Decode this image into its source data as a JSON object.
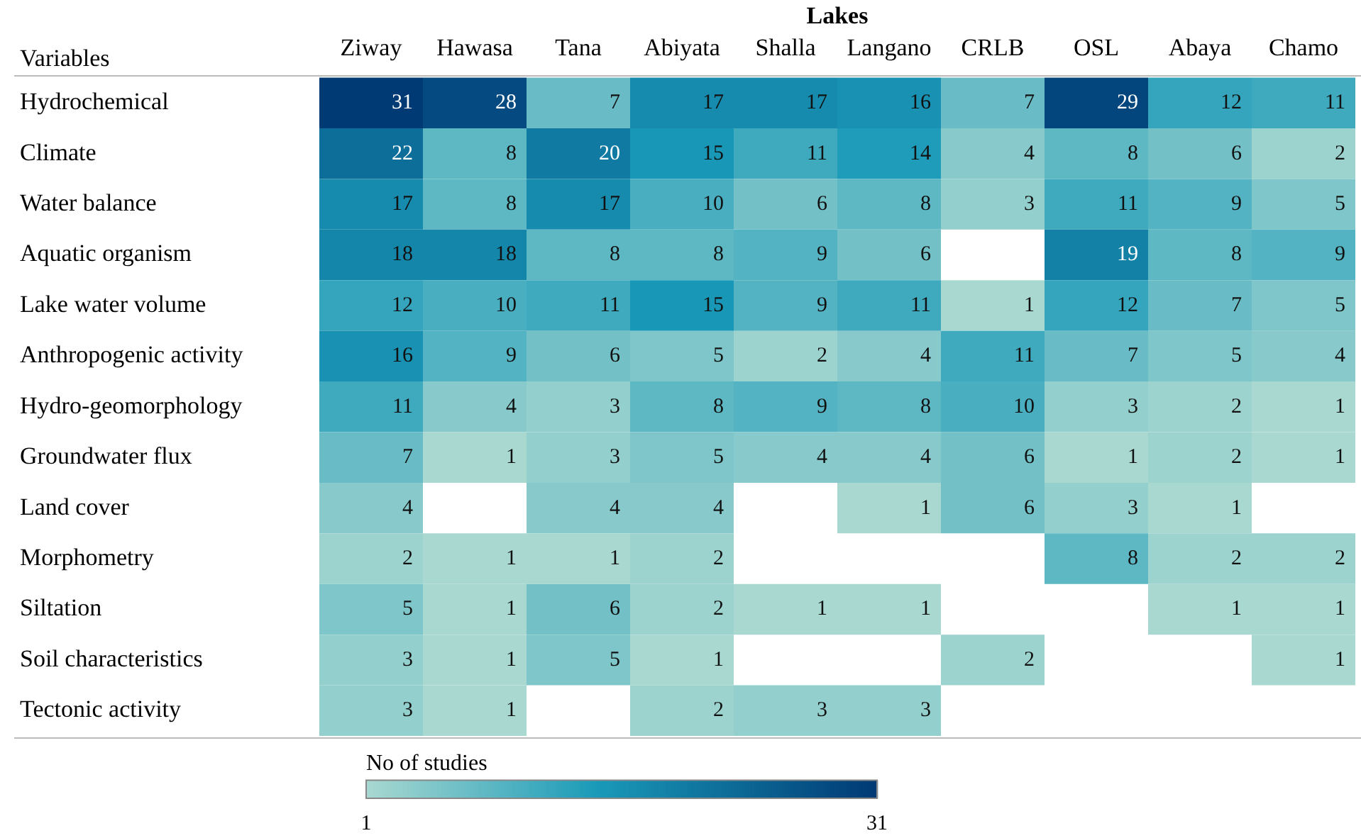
{
  "chart_data": {
    "type": "heatmap",
    "xlabel": "Lakes",
    "ylabel": "Variables",
    "clabel": "No of studies",
    "categories": [
      "Ziway",
      "Hawasa",
      "Tana",
      "Abiyata",
      "Shalla",
      "Langano",
      "CRLB",
      "OSL",
      "Abaya",
      "Chamo"
    ],
    "y_categories": [
      "Hydrochemical",
      "Climate",
      "Water balance",
      "Aquatic organism",
      "Lake water volume",
      "Anthropogenic activity",
      "Hydro-geomorphology",
      "Groundwater flux",
      "Land cover",
      "Morphometry",
      "Siltation",
      "Soil characteristics",
      "Tectonic activity"
    ],
    "cells": [
      [
        31,
        28,
        7,
        17,
        17,
        16,
        7,
        29,
        12,
        11
      ],
      [
        22,
        8,
        20,
        15,
        11,
        14,
        4,
        8,
        6,
        2
      ],
      [
        17,
        8,
        17,
        10,
        6,
        8,
        3,
        11,
        9,
        5
      ],
      [
        18,
        18,
        8,
        8,
        9,
        6,
        null,
        19,
        8,
        9
      ],
      [
        12,
        10,
        11,
        15,
        9,
        11,
        1,
        12,
        7,
        5
      ],
      [
        16,
        9,
        6,
        5,
        2,
        4,
        11,
        7,
        5,
        4
      ],
      [
        11,
        4,
        3,
        8,
        9,
        8,
        10,
        3,
        2,
        1
      ],
      [
        7,
        1,
        3,
        5,
        4,
        4,
        6,
        1,
        2,
        1
      ],
      [
        4,
        null,
        4,
        4,
        null,
        1,
        6,
        3,
        1,
        null
      ],
      [
        2,
        1,
        1,
        2,
        null,
        null,
        null,
        8,
        2,
        2
      ],
      [
        5,
        1,
        6,
        2,
        1,
        1,
        null,
        null,
        1,
        1
      ],
      [
        3,
        1,
        5,
        1,
        null,
        null,
        2,
        null,
        null,
        1
      ],
      [
        3,
        1,
        null,
        2,
        3,
        3,
        null,
        null,
        null,
        null
      ]
    ],
    "clim": [
      1,
      31
    ],
    "cticks": [
      1,
      31
    ],
    "data_labels": true
  }
}
